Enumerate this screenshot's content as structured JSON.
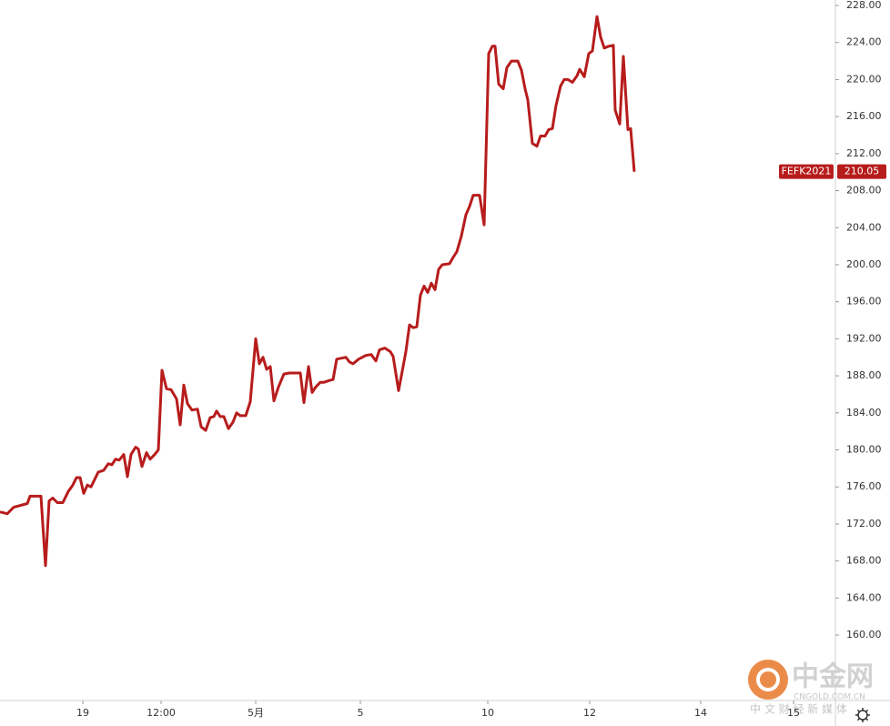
{
  "chart_data": {
    "type": "line",
    "series": [
      {
        "name": "FEFK2021",
        "color": "#b71c1c",
        "x": [
          0,
          8,
          15,
          30,
          33,
          45,
          50,
          54,
          58,
          63,
          69,
          75,
          80,
          84,
          88,
          92,
          96,
          100,
          104,
          108,
          114,
          119,
          123,
          127,
          131,
          136,
          140,
          144,
          149,
          152,
          156,
          161,
          165,
          170,
          174,
          178,
          183,
          188,
          194,
          198,
          202,
          206,
          211,
          217,
          221,
          226,
          231,
          235,
          238,
          242,
          246,
          251,
          256,
          260,
          264,
          270,
          275,
          281,
          285,
          289,
          293,
          297,
          301,
          306,
          312,
          318,
          330,
          334,
          339,
          343,
          347,
          352,
          356,
          362,
          366,
          370,
          380,
          384,
          388,
          394,
          402,
          408,
          413,
          417,
          423,
          429,
          432,
          438,
          446,
          450,
          454,
          458,
          462,
          466,
          470,
          474,
          478,
          482,
          486,
          494,
          498,
          502,
          507,
          512,
          516,
          520,
          527,
          532,
          537,
          541,
          544,
          548,
          553,
          557,
          562,
          569,
          573,
          577,
          580,
          585,
          590,
          594,
          599,
          603,
          607,
          611,
          616,
          620,
          624,
          629,
          634,
          637,
          642,
          647,
          651,
          656,
          660,
          664,
          669,
          674,
          676,
          681,
          685,
          690,
          693,
          697
        ],
        "values": [
          173.3,
          173.1,
          173.8,
          174.2,
          175,
          175,
          167.5,
          174.5,
          174.8,
          174.3,
          174.3,
          175.5,
          176.2,
          177,
          177,
          175.3,
          176.2,
          176,
          176.8,
          177.6,
          177.8,
          178.5,
          178.4,
          179,
          178.9,
          179.5,
          177.1,
          179.5,
          180.3,
          180.1,
          178.2,
          179.7,
          179,
          179.5,
          180,
          188.6,
          186.6,
          186.5,
          185.5,
          182.7,
          187,
          185,
          184.3,
          184.4,
          182.5,
          182.1,
          183.5,
          183.6,
          184.2,
          183.6,
          183.6,
          182.3,
          183,
          184,
          183.7,
          183.7,
          185.2,
          192,
          189.3,
          190,
          188.7,
          189,
          185.3,
          186.8,
          188.2,
          188.3,
          188.3,
          185.1,
          189,
          186.2,
          186.8,
          187.3,
          187.3,
          187.5,
          187.6,
          189.8,
          190,
          189.5,
          189.3,
          189.8,
          190.2,
          190.3,
          189.6,
          190.8,
          191,
          190.6,
          190.1,
          186.4,
          190.6,
          193.5,
          193.2,
          193.3,
          196.7,
          197.7,
          197,
          198,
          197.3,
          199.5,
          200,
          200.1,
          200.8,
          201.4,
          203.1,
          205.4,
          206.3,
          207.5,
          207.5,
          204.3,
          222.8,
          223.6,
          223.6,
          219.5,
          219,
          221.3,
          222,
          222,
          221,
          219,
          217.8,
          213.1,
          212.8,
          213.9,
          213.9,
          214.6,
          214.7,
          217.2,
          219.3,
          220,
          220,
          219.7,
          220.4,
          221.1,
          220.3,
          222.8,
          223.1,
          226.8,
          224.6,
          223.4,
          223.6,
          223.7,
          216.7,
          215.2,
          222.5,
          214.6,
          214.7,
          210.05
        ]
      }
    ],
    "xlim": [
      0,
      918
    ],
    "xticks": [
      {
        "value": 91,
        "label": "19"
      },
      {
        "value": 177,
        "label": "12:00"
      },
      {
        "value": 281,
        "label": "5月"
      },
      {
        "value": 396,
        "label": "5"
      },
      {
        "value": 536,
        "label": "10"
      },
      {
        "value": 648,
        "label": "12"
      },
      {
        "value": 770,
        "label": "14"
      },
      {
        "value": 872,
        "label": "15"
      }
    ],
    "ylim": [
      152.93,
      228.59
    ],
    "yticks": [
      {
        "value": 160,
        "label": "160.00"
      },
      {
        "value": 164,
        "label": "164.00"
      },
      {
        "value": 168,
        "label": "168.00"
      },
      {
        "value": 172,
        "label": "172.00"
      },
      {
        "value": 176,
        "label": "176.00"
      },
      {
        "value": 180,
        "label": "180.00"
      },
      {
        "value": 184,
        "label": "184.00"
      },
      {
        "value": 188,
        "label": "188.00"
      },
      {
        "value": 192,
        "label": "192.00"
      },
      {
        "value": 196,
        "label": "196.00"
      },
      {
        "value": 200,
        "label": "200.00"
      },
      {
        "value": 204,
        "label": "204.00"
      },
      {
        "value": 208,
        "label": "208.00"
      },
      {
        "value": 212,
        "label": "212.00"
      },
      {
        "value": 216,
        "label": "216.00"
      },
      {
        "value": 220,
        "label": "220.00"
      },
      {
        "value": 224,
        "label": "224.00"
      },
      {
        "value": 228,
        "label": "228.00"
      }
    ],
    "watermark": {
      "brand": "中金网",
      "site": "CNGOLD.COM.CN",
      "slogan": "中 文 财 经 新 媒 体"
    }
  }
}
